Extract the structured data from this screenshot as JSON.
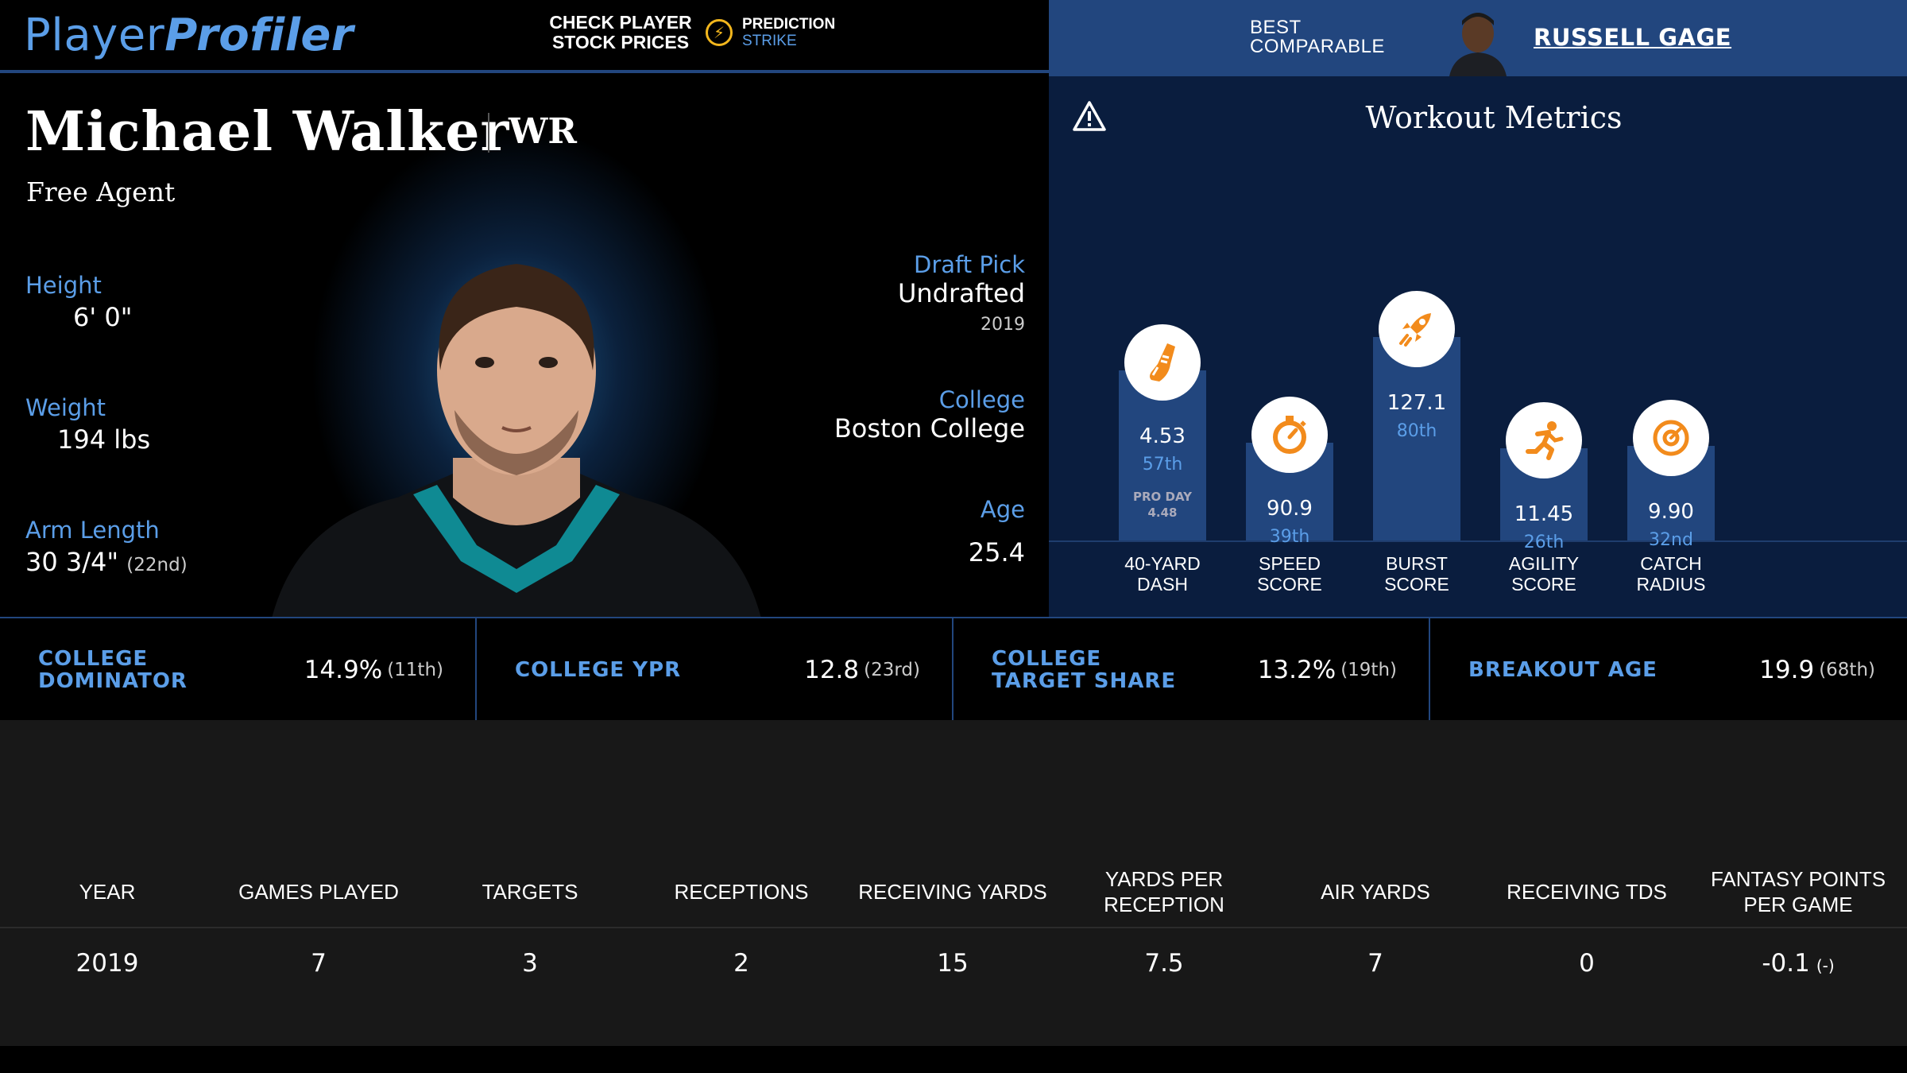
{
  "header": {
    "logo_part1": "Player",
    "logo_part2": "Profiler",
    "promo_check": "CHECK PLAYER STOCK PRICES",
    "promo_brand": "PREDICTION",
    "promo_brand_sub": "STRIKE",
    "best_comparable_label": "BEST COMPARABLE",
    "best_comparable_name": "RUSSELL GAGE"
  },
  "player": {
    "name": "Michael Walker",
    "position": "WR",
    "team": "Free Agent",
    "height_label": "Height",
    "height": "6' 0\"",
    "weight_label": "Weight",
    "weight": "194 lbs",
    "arm_label": "Arm Length",
    "arm": "30 3/4\"",
    "arm_rank": "(22nd)",
    "draft_label": "Draft Pick",
    "draft": "Undrafted",
    "draft_year": "2019",
    "college_label": "College",
    "college": "Boston College",
    "age_label": "Age",
    "age": "25.4"
  },
  "workout": {
    "title": "Workout Metrics",
    "metrics": [
      {
        "label": "40-YARD DASH",
        "value": "4.53",
        "pct": "57th",
        "pct_num": 57,
        "proday_label": "PRO DAY",
        "proday_value": "4.48",
        "icon": "shoe-icon"
      },
      {
        "label": "SPEED SCORE",
        "value": "90.9",
        "pct": "39th",
        "pct_num": 39,
        "icon": "stopwatch-icon"
      },
      {
        "label": "BURST SCORE",
        "value": "127.1",
        "pct": "80th",
        "pct_num": 80,
        "icon": "rocket-icon"
      },
      {
        "label": "AGILITY SCORE",
        "value": "11.45",
        "pct": "26th",
        "pct_num": 26,
        "icon": "runner-icon"
      },
      {
        "label": "CATCH RADIUS",
        "value": "9.90",
        "pct": "32nd",
        "pct_num": 32,
        "icon": "target-icon"
      }
    ]
  },
  "college_stats": [
    {
      "label": "COLLEGE DOMINATOR",
      "value": "14.9%",
      "rank": "(11th)"
    },
    {
      "label": "COLLEGE YPR",
      "value": "12.8",
      "rank": "(23rd)"
    },
    {
      "label": "COLLEGE TARGET SHARE",
      "value": "13.2%",
      "rank": "(19th)"
    },
    {
      "label": "BREAKOUT AGE",
      "value": "19.9",
      "rank": "(68th)"
    }
  ],
  "table": {
    "headers": [
      "YEAR",
      "GAMES PLAYED",
      "TARGETS",
      "RECEPTIONS",
      "RECEIVING YARDS",
      "YARDS PER RECEPTION",
      "AIR YARDS",
      "RECEIVING TDS",
      "FANTASY POINTS PER GAME"
    ],
    "rows": [
      [
        "2019",
        "7",
        "3",
        "2",
        "15",
        "7.5",
        "7",
        "0",
        "-0.1"
      ]
    ],
    "fppg_rank": "(-)"
  },
  "colors": {
    "accent": "#5b9ee8",
    "bar": "#22467e",
    "panel": "#0a1d3e",
    "icon_orange": "#f28b1c"
  }
}
